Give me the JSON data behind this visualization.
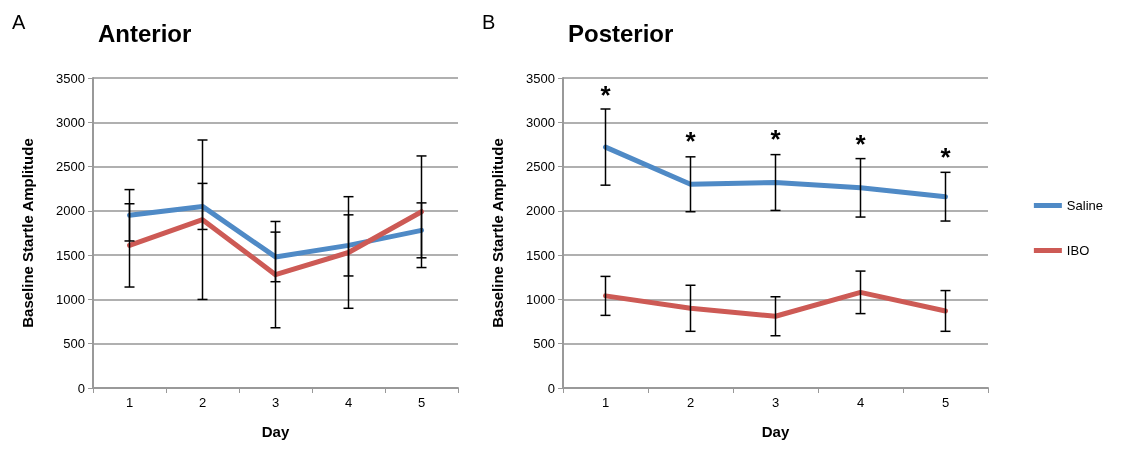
{
  "chart_data": [
    {
      "type": "line",
      "title": "Anterior",
      "xlabel": "Day",
      "ylabel": "Baseline Startle Amplitude",
      "categories": [
        "1",
        "2",
        "3",
        "4",
        "5"
      ],
      "ylim": [
        0,
        3500
      ],
      "yticks": [
        0,
        500,
        1000,
        1500,
        2000,
        2500,
        3000,
        3500
      ],
      "grid": "y",
      "legend": false,
      "marker": "none",
      "line_style": "solid",
      "annotations": [
        "A"
      ],
      "series": [
        {
          "color": "#4f8ac6",
          "values": [
            1950,
            2050,
            1480,
            1610,
            1780
          ],
          "errors": [
            290,
            260,
            280,
            345,
            310
          ]
        },
        {
          "color": "#cd5a55",
          "values": [
            1610,
            1900,
            1280,
            1530,
            1990
          ],
          "errors": [
            470,
            900,
            600,
            630,
            630
          ]
        }
      ]
    },
    {
      "type": "line",
      "title": "Posterior",
      "xlabel": "Day",
      "ylabel": "Baseline Startle Amplitude",
      "categories": [
        "1",
        "2",
        "3",
        "4",
        "5"
      ],
      "ylim": [
        0,
        3500
      ],
      "yticks": [
        0,
        500,
        1000,
        1500,
        2000,
        2500,
        3000,
        3500
      ],
      "grid": "y",
      "legend": "right",
      "marker": "none",
      "line_style": "solid",
      "annotations": [
        "B",
        {
          "text": "*",
          "x": "1",
          "y": 3140
        },
        {
          "text": "*",
          "x": "2",
          "y": 2620
        },
        {
          "text": "*",
          "x": "3",
          "y": 2640
        },
        {
          "text": "*",
          "x": "4",
          "y": 2580
        },
        {
          "text": "*",
          "x": "5",
          "y": 2440
        }
      ],
      "series": [
        {
          "name": "Saline",
          "color": "#4f8ac6",
          "values": [
            2720,
            2300,
            2320,
            2260,
            2160
          ],
          "errors": [
            430,
            310,
            315,
            330,
            275
          ]
        },
        {
          "name": "IBO",
          "color": "#cd5a55",
          "values": [
            1040,
            900,
            810,
            1080,
            870
          ],
          "errors": [
            220,
            260,
            220,
            240,
            230
          ]
        }
      ]
    }
  ]
}
